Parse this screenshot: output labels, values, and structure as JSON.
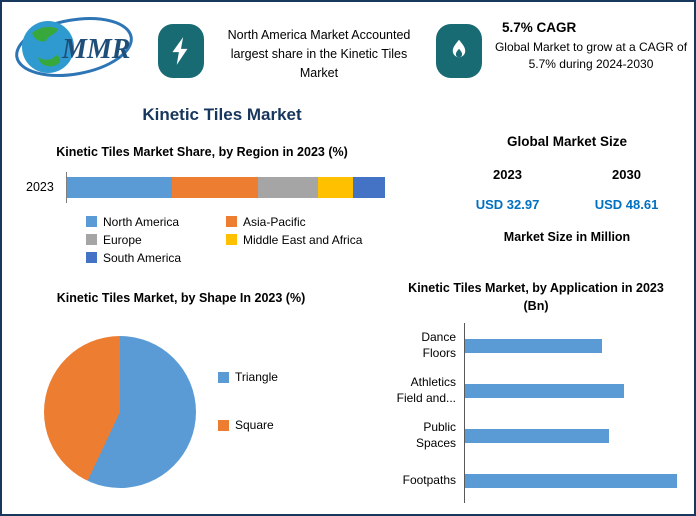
{
  "page": {
    "title": "Kinetic Tiles Market",
    "border_color": "#17375d",
    "badge_color": "#186a73"
  },
  "logo": {
    "text": "MMR"
  },
  "header": {
    "left_callout": "North America Market Accounted largest share in the Kinetic Tiles Market",
    "cagr_title": "5.7% CAGR",
    "cagr_text": "Global Market to grow at a CAGR of 5.7% during 2024-2030"
  },
  "market_size": {
    "title": "Global Market Size",
    "col_2023_label": "2023",
    "col_2030_label": "2030",
    "value_2023": "USD 32.97",
    "value_2030": "USD 48.61",
    "note": "Market Size in Million",
    "value_color": "#0070c0"
  },
  "chart_data": [
    {
      "id": "region_share",
      "type": "bar",
      "orientation": "horizontal-stacked",
      "title": "Kinetic Tiles Market Share, by Region in 2023 (%)",
      "categories": [
        "2023"
      ],
      "series": [
        {
          "name": "North America",
          "values": [
            33
          ],
          "color": "#5b9bd5"
        },
        {
          "name": "Asia-Pacific",
          "values": [
            27
          ],
          "color": "#ed7d31"
        },
        {
          "name": "Europe",
          "values": [
            19
          ],
          "color": "#a5a5a5"
        },
        {
          "name": "Middle East and Africa",
          "values": [
            11
          ],
          "color": "#ffc000"
        },
        {
          "name": "South America",
          "values": [
            10
          ],
          "color": "#4472c4"
        }
      ],
      "xlim": [
        0,
        100
      ],
      "legend_position": "bottom",
      "grid": false
    },
    {
      "id": "shape_share",
      "type": "pie",
      "title": "Kinetic Tiles Market, by Shape In 2023 (%)",
      "labels": [
        "Triangle",
        "Square"
      ],
      "values": [
        57,
        43
      ],
      "colors": [
        "#5b9bd5",
        "#ed7d31"
      ],
      "legend_position": "right"
    },
    {
      "id": "application",
      "type": "bar",
      "orientation": "horizontal",
      "title": "Kinetic Tiles Market, by Application in 2023 (Bn)",
      "categories": [
        "Dance Floors",
        "Athletics Field and...",
        "Public Spaces",
        "Footpaths"
      ],
      "values": [
        0.62,
        0.72,
        0.65,
        0.96
      ],
      "color": "#5b9bd5",
      "xlim": [
        0,
        1.0
      ],
      "grid": false
    }
  ]
}
